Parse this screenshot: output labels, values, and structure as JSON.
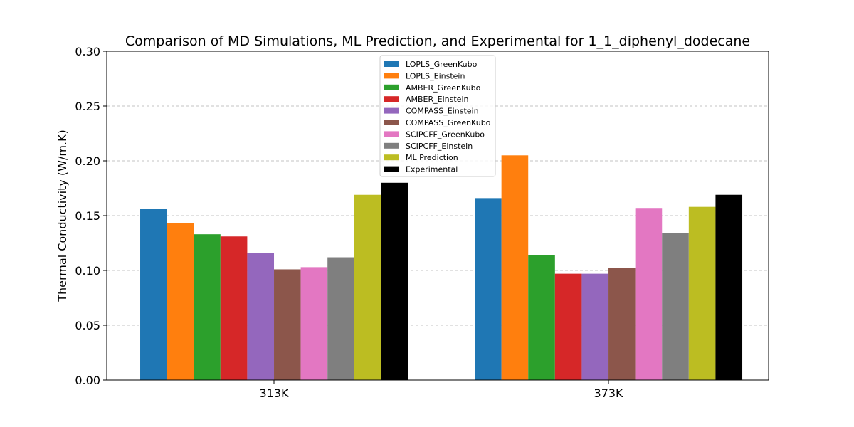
{
  "chart_data": {
    "type": "bar",
    "title": "Comparison of MD Simulations, ML Prediction, and Experimental for 1_1_diphenyl_dodecane",
    "xlabel": "",
    "ylabel": "Thermal Conductivity (W/m.K)",
    "categories": [
      "313K",
      "373K"
    ],
    "ylim": [
      0,
      0.3
    ],
    "yticks": [
      "0.00",
      "0.05",
      "0.10",
      "0.15",
      "0.20",
      "0.25",
      "0.30"
    ],
    "grid": "y-dashed",
    "legend_position": "top-center",
    "series": [
      {
        "name": "LOPLS_GreenKubo",
        "color": "#1f77b4",
        "values": [
          0.156,
          0.166
        ]
      },
      {
        "name": "LOPLS_Einstein",
        "color": "#ff7f0e",
        "values": [
          0.143,
          0.205
        ]
      },
      {
        "name": "AMBER_GreenKubo",
        "color": "#2ca02c",
        "values": [
          0.133,
          0.114
        ]
      },
      {
        "name": "AMBER_Einstein",
        "color": "#d62728",
        "values": [
          0.131,
          0.097
        ]
      },
      {
        "name": "COMPASS_Einstein",
        "color": "#9467bd",
        "values": [
          0.116,
          0.097
        ]
      },
      {
        "name": "COMPASS_GreenKubo",
        "color": "#8c564b",
        "values": [
          0.101,
          0.102
        ]
      },
      {
        "name": "SCIPCFF_GreenKubo",
        "color": "#e377c2",
        "values": [
          0.103,
          0.157
        ]
      },
      {
        "name": "SCIPCFF_Einstein",
        "color": "#7f7f7f",
        "values": [
          0.112,
          0.134
        ]
      },
      {
        "name": "ML Prediction",
        "color": "#bcbd22",
        "values": [
          0.169,
          0.158
        ]
      },
      {
        "name": "Experimental",
        "color": "#000000",
        "values": [
          0.18,
          0.169
        ]
      }
    ]
  }
}
